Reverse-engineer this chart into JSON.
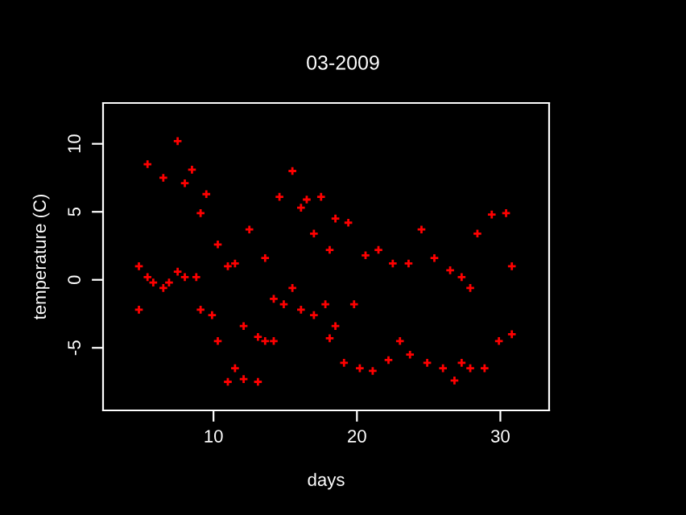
{
  "chart_data": {
    "type": "scatter",
    "title": "03-2009",
    "xlabel": "days",
    "ylabel": "temperature (C)",
    "xlim": [
      2.3,
      33.4
    ],
    "ylim": [
      -9.6,
      13.0
    ],
    "xticks": [
      10,
      20,
      30
    ],
    "yticks": [
      -5,
      0,
      5,
      10
    ],
    "marker": "cross",
    "series": [
      {
        "color": "#ff0000",
        "x": [
          4.8,
          4.8,
          5.4,
          5.4,
          5.8,
          6.5,
          6.5,
          6.9,
          7.5,
          7.5,
          8.0,
          8.0,
          8.5,
          8.8,
          9.1,
          9.1,
          9.5,
          9.9,
          10.3,
          10.3,
          11.0,
          11.0,
          11.5,
          11.5,
          12.1,
          12.1,
          12.5,
          13.1,
          13.1,
          13.6,
          13.6,
          14.2,
          14.2,
          14.6,
          14.9,
          15.5,
          15.5,
          16.1,
          16.1,
          16.5,
          17.0,
          17.0,
          17.5,
          17.8,
          18.1,
          18.1,
          18.5,
          18.5,
          19.1,
          19.4,
          19.8,
          20.2,
          20.6,
          21.1,
          21.5,
          22.2,
          22.5,
          23.0,
          23.6,
          23.7,
          24.5,
          24.9,
          25.4,
          26.0,
          26.5,
          26.8,
          27.3,
          27.3,
          27.9,
          27.9,
          28.4,
          28.9,
          29.4,
          29.9,
          30.4,
          30.8,
          30.8
        ],
        "values": [
          1.0,
          -2.2,
          8.5,
          0.2,
          -0.2,
          7.5,
          -0.6,
          -0.2,
          10.2,
          0.6,
          7.1,
          0.2,
          8.1,
          0.2,
          -2.2,
          4.9,
          6.3,
          -2.6,
          2.6,
          -4.5,
          1.0,
          -7.5,
          1.2,
          -6.5,
          -3.4,
          -7.3,
          3.7,
          -4.2,
          -7.5,
          1.6,
          -4.5,
          -1.4,
          -4.5,
          6.1,
          -1.8,
          8.0,
          -0.6,
          -2.2,
          5.3,
          5.9,
          -2.6,
          3.4,
          6.1,
          -1.8,
          -4.3,
          2.2,
          4.5,
          -3.4,
          -6.1,
          4.2,
          -1.8,
          -6.5,
          1.8,
          -6.7,
          2.2,
          -5.9,
          1.2,
          -4.5,
          1.2,
          -5.5,
          3.7,
          -6.1,
          1.6,
          -6.5,
          0.7,
          -7.4,
          0.2,
          -6.1,
          -0.6,
          -6.5,
          3.4,
          -6.5,
          4.8,
          -4.5,
          4.9,
          -4.0,
          1.0
        ]
      }
    ]
  }
}
